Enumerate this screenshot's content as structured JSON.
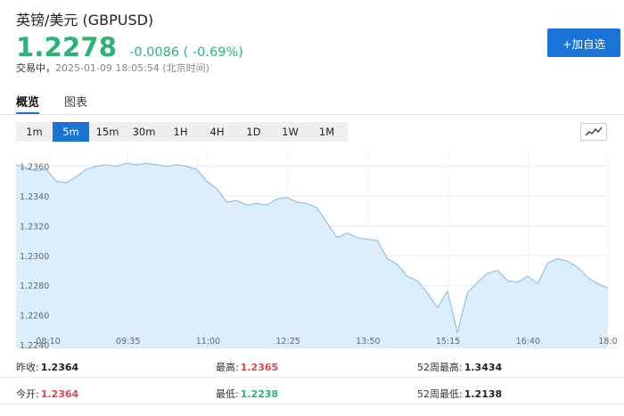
{
  "header": {
    "title": "英镑/美元  (GBPUSD)",
    "price": "1.2278",
    "change": "-0.0086 ( -0.69%)",
    "status_label": "交易中，",
    "status_time": "2025-01-09 18:05:54 (北京时间)",
    "add_watchlist_label": "+加自选"
  },
  "colors": {
    "down": "#2bb279",
    "up": "#e04545",
    "accent": "#1a73d6",
    "area_fill": "#dcedfb",
    "line": "#8ec2ea"
  },
  "tabs": [
    {
      "label": "概览"
    },
    {
      "label": "图表"
    }
  ],
  "intervals": [
    "1m",
    "5m",
    "15m",
    "30m",
    "1H",
    "4H",
    "1D",
    "1W",
    "1M"
  ],
  "active_interval": "5m",
  "chart_type_icon": "line-chart-icon",
  "chart_data": {
    "type": "area",
    "ylim": [
      1.224,
      1.237
    ],
    "y_ticks": [
      "1.2360",
      "1.2340",
      "1.2320",
      "1.2300",
      "1.2280",
      "1.2260",
      "1.2240"
    ],
    "x_ticks": [
      "08:10",
      "09:35",
      "11:00",
      "12:25",
      "13:50",
      "15:15",
      "16:40",
      "18:0"
    ],
    "grid": true,
    "series": [
      {
        "x": [
          "08:10",
          "08:20",
          "08:30",
          "08:40",
          "08:50",
          "09:00",
          "09:10",
          "09:20",
          "09:30",
          "09:40",
          "09:50",
          "10:00",
          "10:10",
          "10:20",
          "10:30",
          "10:40",
          "10:50",
          "11:00",
          "11:10",
          "11:20",
          "11:30",
          "11:40",
          "11:50",
          "12:00",
          "12:10",
          "12:20",
          "12:30",
          "12:40",
          "12:50",
          "13:00",
          "13:10",
          "13:20",
          "13:30",
          "13:40",
          "13:50",
          "14:00",
          "14:10",
          "14:20",
          "14:30",
          "14:40",
          "14:50",
          "15:00",
          "15:10",
          "15:20",
          "15:30",
          "15:40",
          "15:50",
          "16:00",
          "16:10",
          "16:20",
          "16:30",
          "16:40",
          "16:50",
          "17:00",
          "17:10",
          "17:20",
          "17:30",
          "17:40",
          "17:50",
          "18:00"
        ],
        "values": [
          1.2361,
          1.2359,
          1.2357,
          1.2358,
          1.235,
          1.2349,
          1.2353,
          1.2358,
          1.236,
          1.2361,
          1.236,
          1.2362,
          1.2361,
          1.2362,
          1.2361,
          1.236,
          1.2361,
          1.236,
          1.2358,
          1.235,
          1.2345,
          1.2336,
          1.2337,
          1.2334,
          1.2335,
          1.2334,
          1.2338,
          1.2339,
          1.2336,
          1.2335,
          1.2332,
          1.2322,
          1.2312,
          1.2315,
          1.2312,
          1.2311,
          1.231,
          1.2298,
          1.2294,
          1.2286,
          1.2283,
          1.2275,
          1.2265,
          1.2276,
          1.2248,
          1.2275,
          1.2282,
          1.2288,
          1.229,
          1.2283,
          1.2282,
          1.2286,
          1.2281,
          1.2295,
          1.2298,
          1.2296,
          1.2292,
          1.2285,
          1.2281,
          1.2278
        ]
      }
    ]
  },
  "stats": [
    [
      {
        "label": "昨收:",
        "value": "1.2364",
        "color": "#222222"
      },
      {
        "label": "最高:",
        "value": "1.2365",
        "color": "#e04545"
      },
      {
        "label": "52周最高:",
        "value": "1.3434",
        "color": "#222222"
      }
    ],
    [
      {
        "label": "今开:",
        "value": "1.2364",
        "color": "#e04545"
      },
      {
        "label": "最低:",
        "value": "1.2238",
        "color": "#2bb279"
      },
      {
        "label": "52周最低:",
        "value": "1.2138",
        "color": "#222222"
      }
    ]
  ]
}
